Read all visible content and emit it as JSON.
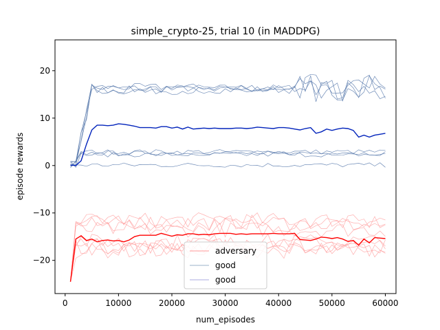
{
  "chart_data": {
    "type": "line",
    "title": "simple_crypto-25, trial 10 (in MADDPG)",
    "xlabel": "num_episodes",
    "ylabel": "episode rewards",
    "xlim": [
      -1900,
      62000
    ],
    "ylim": [
      -27.0,
      26.5
    ],
    "xticks": [
      0,
      10000,
      20000,
      30000,
      40000,
      50000,
      60000
    ],
    "yticks": [
      -20,
      -10,
      0,
      10,
      20
    ],
    "grid": false,
    "legend": {
      "placement": "lower-center",
      "entries": [
        {
          "label": "adversary",
          "color": "#ff9999"
        },
        {
          "label": "good",
          "color": "#9bb0c8"
        },
        {
          "label": "good",
          "color": "#a9a9e0"
        }
      ]
    },
    "colors": {
      "adversary_mean": "#ff0000",
      "adversary_runs": "#ff9a9a",
      "good_mean": "#0022bb",
      "good_runs": "#5577aa"
    },
    "series": [
      {
        "role": "good-mean",
        "x": [
          1000,
          2000,
          3000,
          4000,
          5000,
          6000,
          7000,
          8000,
          9000,
          10000,
          11000,
          12000,
          13000,
          14000,
          15000,
          16000,
          17000,
          18000,
          19000,
          20000,
          21000,
          22000,
          23000,
          24000,
          25000,
          26000,
          27000,
          28000,
          29000,
          30000,
          31000,
          32000,
          33000,
          34000,
          35000,
          36000,
          37000,
          38000,
          39000,
          40000,
          41000,
          42000,
          43000,
          44000,
          45000,
          46000,
          47000,
          48000,
          49000,
          50000,
          51000,
          52000,
          53000,
          54000,
          55000,
          56000,
          57000,
          58000,
          59000,
          60000
        ],
        "y": [
          0.1,
          0.0,
          1.0,
          4.5,
          7.5,
          8.5,
          8.5,
          8.4,
          8.5,
          8.8,
          8.7,
          8.5,
          8.3,
          8.0,
          8.0,
          8.0,
          7.9,
          8.2,
          8.2,
          7.9,
          8.1,
          7.7,
          8.1,
          7.7,
          7.8,
          7.9,
          7.8,
          7.9,
          7.8,
          7.8,
          7.8,
          7.9,
          7.9,
          7.8,
          7.9,
          8.1,
          8.0,
          7.9,
          7.8,
          8.0,
          8.0,
          7.9,
          7.7,
          7.5,
          7.8,
          8.0,
          6.8,
          7.1,
          7.7,
          7.4,
          7.7,
          7.9,
          7.8,
          7.4,
          6.0,
          6.4,
          6.0,
          6.4,
          6.6,
          6.8
        ]
      },
      {
        "role": "adversary-mean",
        "x": [
          1000,
          2000,
          3000,
          4000,
          5000,
          6000,
          7000,
          8000,
          9000,
          10000,
          11000,
          12000,
          13000,
          14000,
          15000,
          16000,
          17000,
          18000,
          19000,
          20000,
          21000,
          22000,
          23000,
          24000,
          25000,
          26000,
          27000,
          28000,
          29000,
          30000,
          31000,
          32000,
          33000,
          34000,
          35000,
          36000,
          37000,
          38000,
          39000,
          40000,
          41000,
          42000,
          43000,
          44000,
          45000,
          46000,
          47000,
          48000,
          49000,
          50000,
          51000,
          52000,
          53000,
          54000,
          55000,
          56000,
          57000,
          58000,
          59000,
          60000
        ],
        "y": [
          -24.5,
          -15.5,
          -14.8,
          -15.8,
          -15.5,
          -16.1,
          -15.8,
          -15.7,
          -15.9,
          -15.8,
          -16.1,
          -15.7,
          -15.0,
          -14.7,
          -14.7,
          -14.7,
          -14.7,
          -14.3,
          -14.6,
          -14.9,
          -14.6,
          -14.7,
          -14.4,
          -14.4,
          -14.6,
          -14.5,
          -14.6,
          -14.4,
          -14.3,
          -14.3,
          -14.3,
          -14.5,
          -14.4,
          -14.5,
          -14.4,
          -14.4,
          -14.4,
          -14.4,
          -14.3,
          -14.4,
          -14.4,
          -14.4,
          -14.3,
          -15.6,
          -15.7,
          -15.8,
          -15.5,
          -15.1,
          -15.2,
          -15.4,
          -15.2,
          -15.5,
          -16.0,
          -15.8,
          -16.8,
          -15.5,
          -16.3,
          -15.2,
          -15.3,
          -15.4
        ]
      }
    ],
    "good_run_levels": [
      16.3,
      16.0,
      16.5,
      15.8,
      2.9,
      2.6,
      2.3,
      0.1
    ],
    "adversary_run_levels": [
      -11.5,
      -12.0,
      -12.5,
      -13.5,
      -16.0,
      -16.5,
      -17.0,
      -17.5,
      -18.0
    ]
  }
}
